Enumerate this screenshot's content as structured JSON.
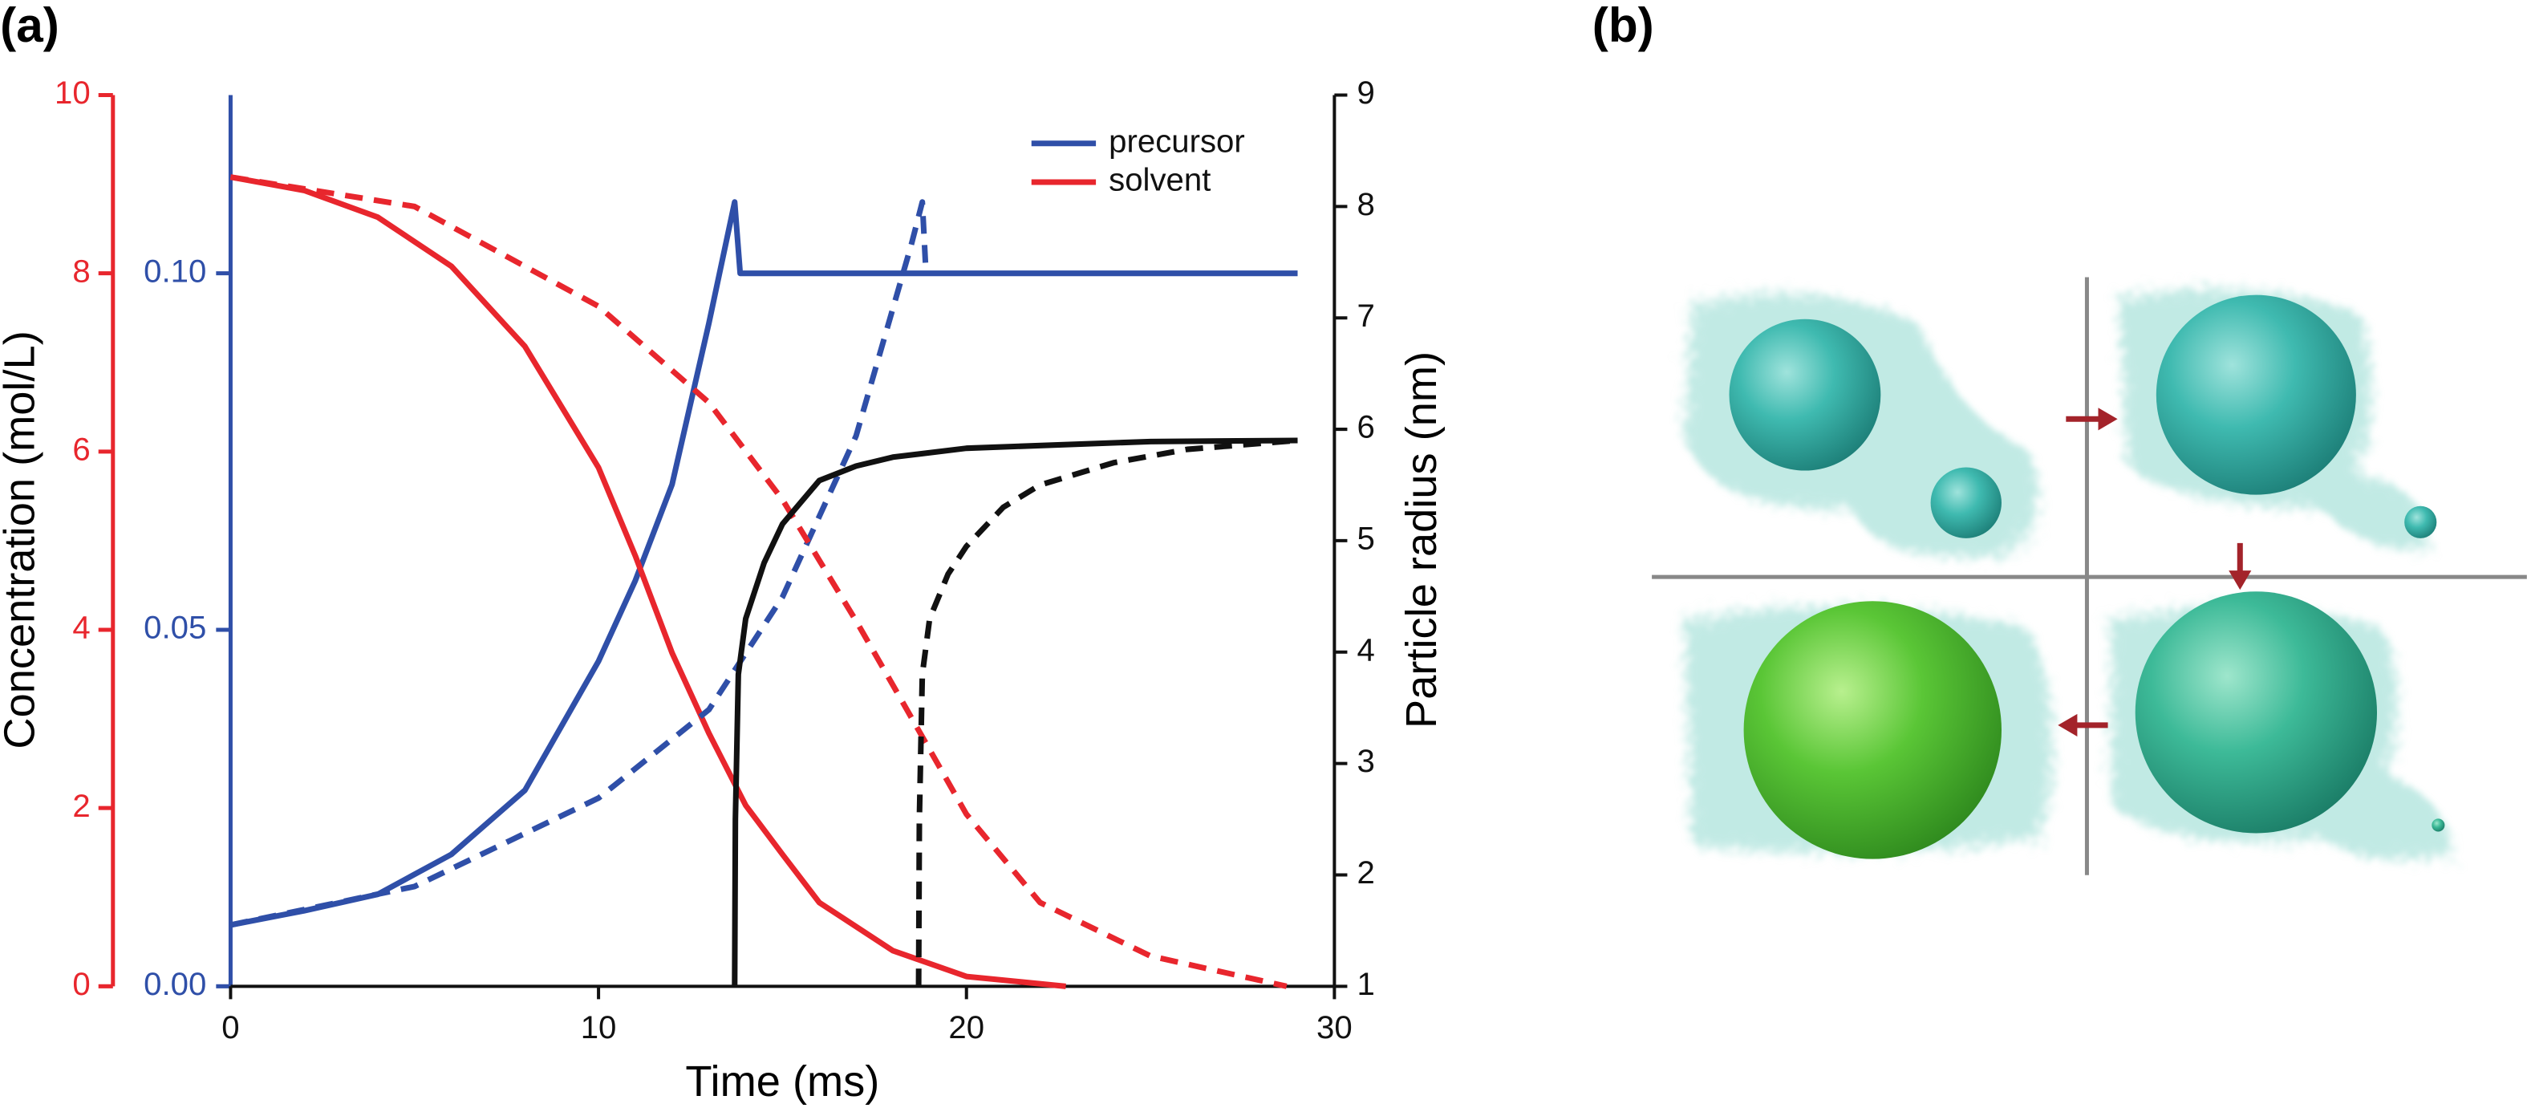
{
  "panel_labels": [
    "(a)",
    "(b)"
  ],
  "chart_data": {
    "type": "line",
    "xlabel": "Time (ms)",
    "ylabel": "Concentration (mol/L)",
    "y3label": "Particle radius (nm)",
    "xlim": [
      0,
      30
    ],
    "xticks": [
      0,
      10,
      20,
      30
    ],
    "ylim": [
      0,
      10
    ],
    "yticks": [
      0,
      2,
      4,
      6,
      8,
      10
    ],
    "ycolor": "#e8262d",
    "y2lim": [
      0,
      0.125
    ],
    "y2ticks": [
      {
        "value": 0,
        "label": "0.00"
      },
      0.05,
      {
        "value": 0.1,
        "label": "0.10"
      }
    ],
    "y2color": "#2f4fa8",
    "y3lim": [
      1,
      9
    ],
    "y3ticks": [
      1,
      2,
      3,
      4,
      5,
      6,
      7,
      8,
      9
    ],
    "series": [
      {
        "name": "precursor",
        "color": "#2f4fa8",
        "dash": false,
        "axis": "y2",
        "x": [
          0,
          2,
          4,
          6,
          8,
          10,
          11,
          12,
          13,
          13.7,
          13.85,
          20,
          29
        ],
        "values": [
          0.0086,
          0.0106,
          0.0129,
          0.0185,
          0.0275,
          0.0456,
          0.0569,
          0.0704,
          0.093,
          0.11,
          0.1,
          0.1,
          0.1
        ]
      },
      {
        "name": "solvent",
        "color": "#e8262d",
        "dash": false,
        "axis": "y",
        "x": [
          0,
          2,
          4,
          6,
          8,
          10,
          11,
          12,
          13,
          14,
          15,
          16,
          18,
          20,
          22.7
        ],
        "values": [
          9.08,
          8.93,
          8.63,
          8.08,
          7.18,
          5.82,
          4.83,
          3.74,
          2.84,
          2.03,
          1.48,
          0.94,
          0.4,
          0.11,
          0
        ]
      },
      {
        "color": "#2f4fa8",
        "dash": true,
        "axis": "y2",
        "x": [
          0,
          5,
          10,
          13,
          15,
          17,
          18.5,
          18.8,
          18.9
        ],
        "values": [
          0.0086,
          0.014,
          0.0264,
          0.0388,
          0.0546,
          0.0772,
          0.104,
          0.11,
          0.1
        ]
      },
      {
        "color": "#e8262d",
        "dash": true,
        "axis": "y",
        "x": [
          0,
          5,
          10,
          13,
          15,
          17,
          18,
          20,
          22,
          25,
          28.7
        ],
        "values": [
          9.08,
          8.75,
          7.63,
          6.55,
          5.46,
          4.1,
          3.38,
          1.93,
          0.94,
          0.34,
          0
        ]
      },
      {
        "color": "#111111",
        "dash": false,
        "axis": "y3",
        "x": [
          13.7,
          13.72,
          13.8,
          14,
          14.5,
          15,
          16,
          17,
          18,
          20,
          25,
          29
        ],
        "values": [
          1,
          2.5,
          3.8,
          4.3,
          4.8,
          5.15,
          5.54,
          5.67,
          5.75,
          5.83,
          5.89,
          5.9
        ]
      },
      {
        "color": "#111111",
        "dash": true,
        "axis": "y3",
        "x": [
          18.7,
          18.72,
          18.8,
          19,
          19.5,
          20,
          21,
          22,
          24,
          26,
          29
        ],
        "values": [
          1,
          2.5,
          3.8,
          4.3,
          4.7,
          4.95,
          5.3,
          5.5,
          5.7,
          5.82,
          5.9
        ]
      }
    ]
  }
}
